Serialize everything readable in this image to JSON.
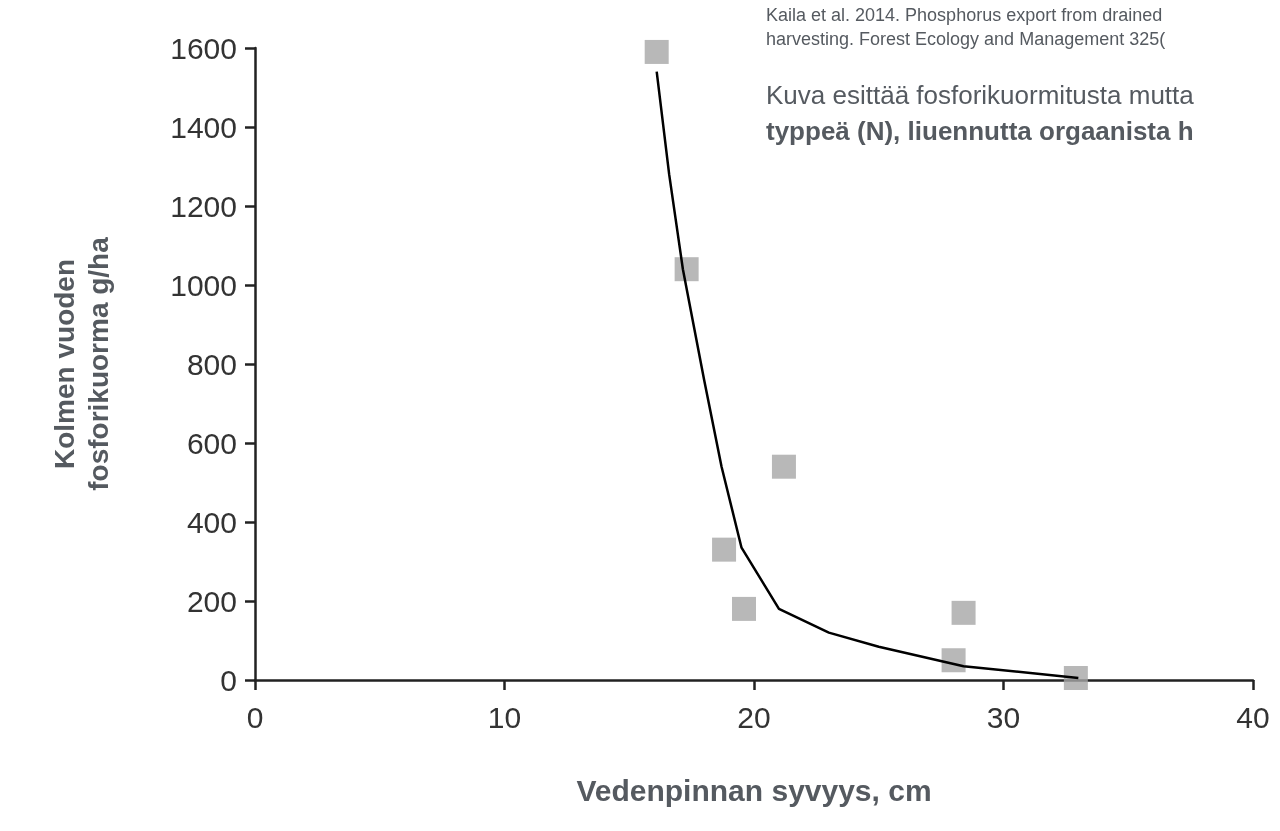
{
  "chart_data": {
    "type": "scatter",
    "xlabel": "Vedenpinnan syvyys, cm",
    "ylabel": "Kolmen vuoden\nfosforikuorma g/ha",
    "annotations": [
      "Kaila et al. 2014. Phosphorus export from drained",
      "harvesting. Forest Ecology and Management 325(",
      "Kuva esittää fosforikuormitusta mutta",
      "typpeä (N), liuennutta orgaanista h"
    ],
    "xlim": [
      0,
      40
    ],
    "xticks": [
      0,
      10,
      20,
      30,
      40
    ],
    "ylim": [
      0,
      1600
    ],
    "yticks": [
      0,
      200,
      400,
      600,
      800,
      1000,
      1200,
      1400,
      1600
    ],
    "grid": false,
    "series": [
      {
        "type": "scatter",
        "color": "#a6a6a6",
        "marker": "square",
        "x": [
          16.1,
          17.3,
          21.2,
          18.8,
          19.6,
          28.4,
          28.0,
          32.9
        ],
        "values": [
          1590,
          1040,
          540,
          330,
          180,
          170,
          50,
          5
        ]
      },
      {
        "type": "line",
        "color": "#000000",
        "marker": "none",
        "line_style": "solid",
        "x": [
          16.1,
          16.6,
          17.15,
          18,
          18.7,
          19.5,
          21,
          23,
          25,
          28.4,
          33
        ],
        "values": [
          1540,
          1280,
          1040,
          760,
          540,
          335,
          180,
          120,
          84,
          35,
          5
        ]
      }
    ]
  }
}
